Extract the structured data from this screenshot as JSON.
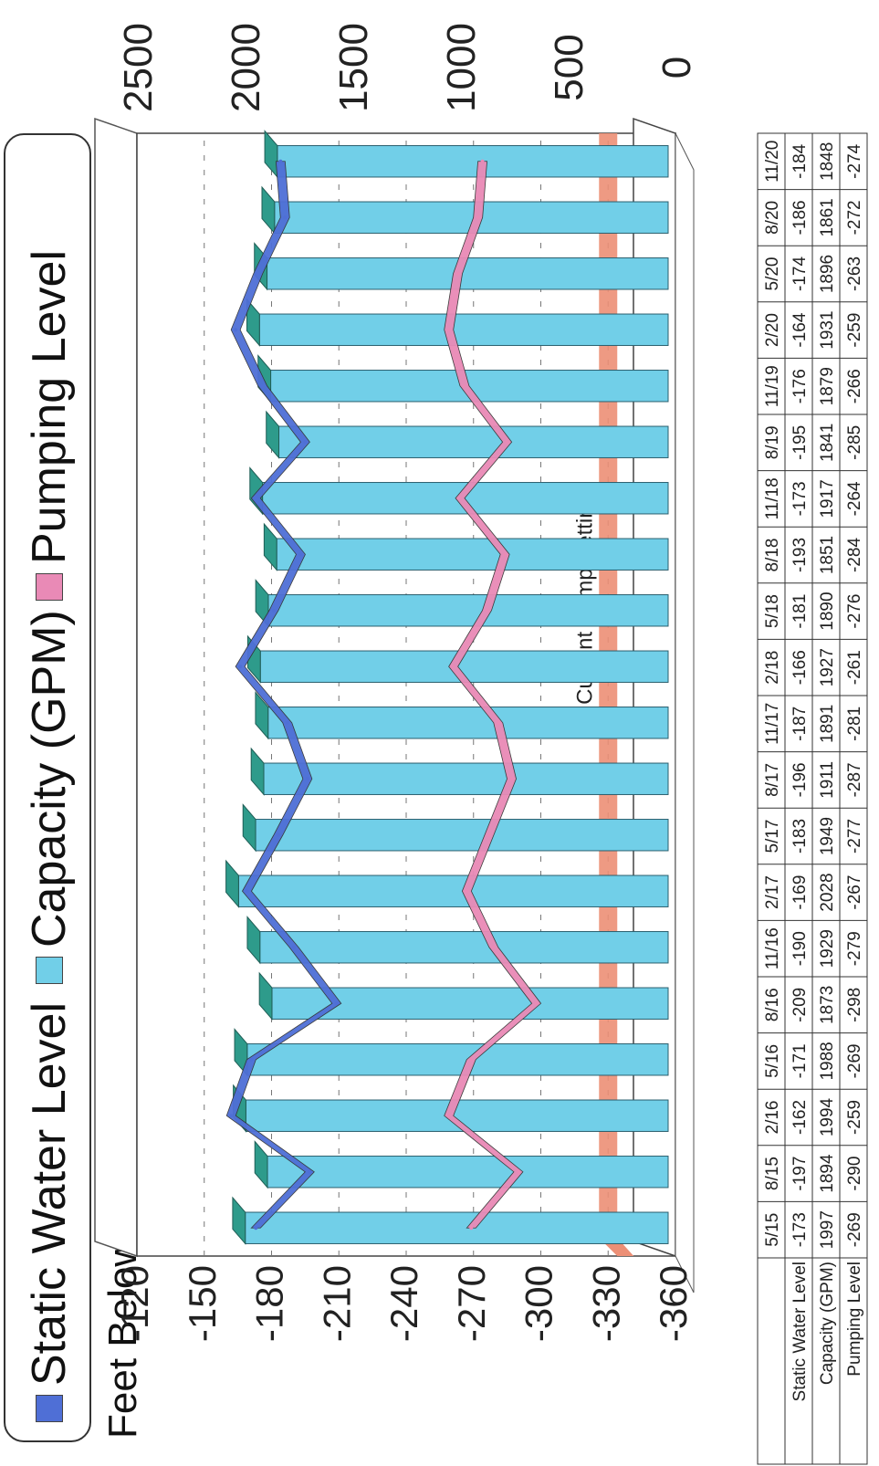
{
  "legend": {
    "static_label": "Static Water Level",
    "capacity_label": "Capacity (GPM)",
    "pumping_label": "Pumping Level"
  },
  "colors": {
    "static": "#4f6fd6",
    "capacity_face": "#71cfe8",
    "capacity_top": "#2e9b8b",
    "pumping": "#e98ab6",
    "pump_setting": "#ec8f76"
  },
  "annotation": "Current Pump Setting",
  "chart_data": {
    "type": "bar",
    "ylabel": "Feet Below Surface",
    "categories": [
      "5/15",
      "8/15",
      "2/16",
      "5/16",
      "8/16",
      "11/16",
      "2/17",
      "5/17",
      "8/17",
      "11/17",
      "2/18",
      "5/18",
      "8/18",
      "11/18",
      "8/19",
      "11/19",
      "2/20",
      "5/20",
      "8/20",
      "11/20"
    ],
    "series": [
      {
        "name": "Static Water Level",
        "chart": "line",
        "axis": "left",
        "values": [
          -173,
          -197,
          -162,
          -171,
          -209,
          -190,
          -169,
          -183,
          -196,
          -187,
          -166,
          -181,
          -193,
          -173,
          -195,
          -176,
          -164,
          -174,
          -186,
          -184
        ]
      },
      {
        "name": "Capacity (GPM)",
        "chart": "bar",
        "axis": "right",
        "values": [
          1997,
          1894,
          1994,
          1988,
          1873,
          1929,
          2028,
          1949,
          1911,
          1891,
          1927,
          1890,
          1851,
          1917,
          1841,
          1879,
          1931,
          1896,
          1861,
          1848
        ]
      },
      {
        "name": "Pumping Level",
        "chart": "line",
        "axis": "left",
        "values": [
          -269,
          -290,
          -259,
          -269,
          -298,
          -279,
          -267,
          -277,
          -287,
          -281,
          -261,
          -276,
          -284,
          -264,
          -285,
          -266,
          -259,
          -263,
          -272,
          -274
        ]
      }
    ],
    "left_axis": {
      "ticks": [
        -120,
        -150,
        -180,
        -210,
        -240,
        -270,
        -300,
        -330,
        -360
      ],
      "range": [
        -360,
        -120
      ]
    },
    "right_axis": {
      "ticks": [
        0,
        500,
        1000,
        1500,
        2000,
        2500
      ],
      "range": [
        0,
        2500
      ]
    },
    "pump_setting": -330,
    "table_rows": [
      {
        "label": "Static Water Level",
        "series": 0
      },
      {
        "label": "Capacity (GPM)",
        "series": 1
      },
      {
        "label": "Pumping Level",
        "series": 2
      }
    ]
  }
}
